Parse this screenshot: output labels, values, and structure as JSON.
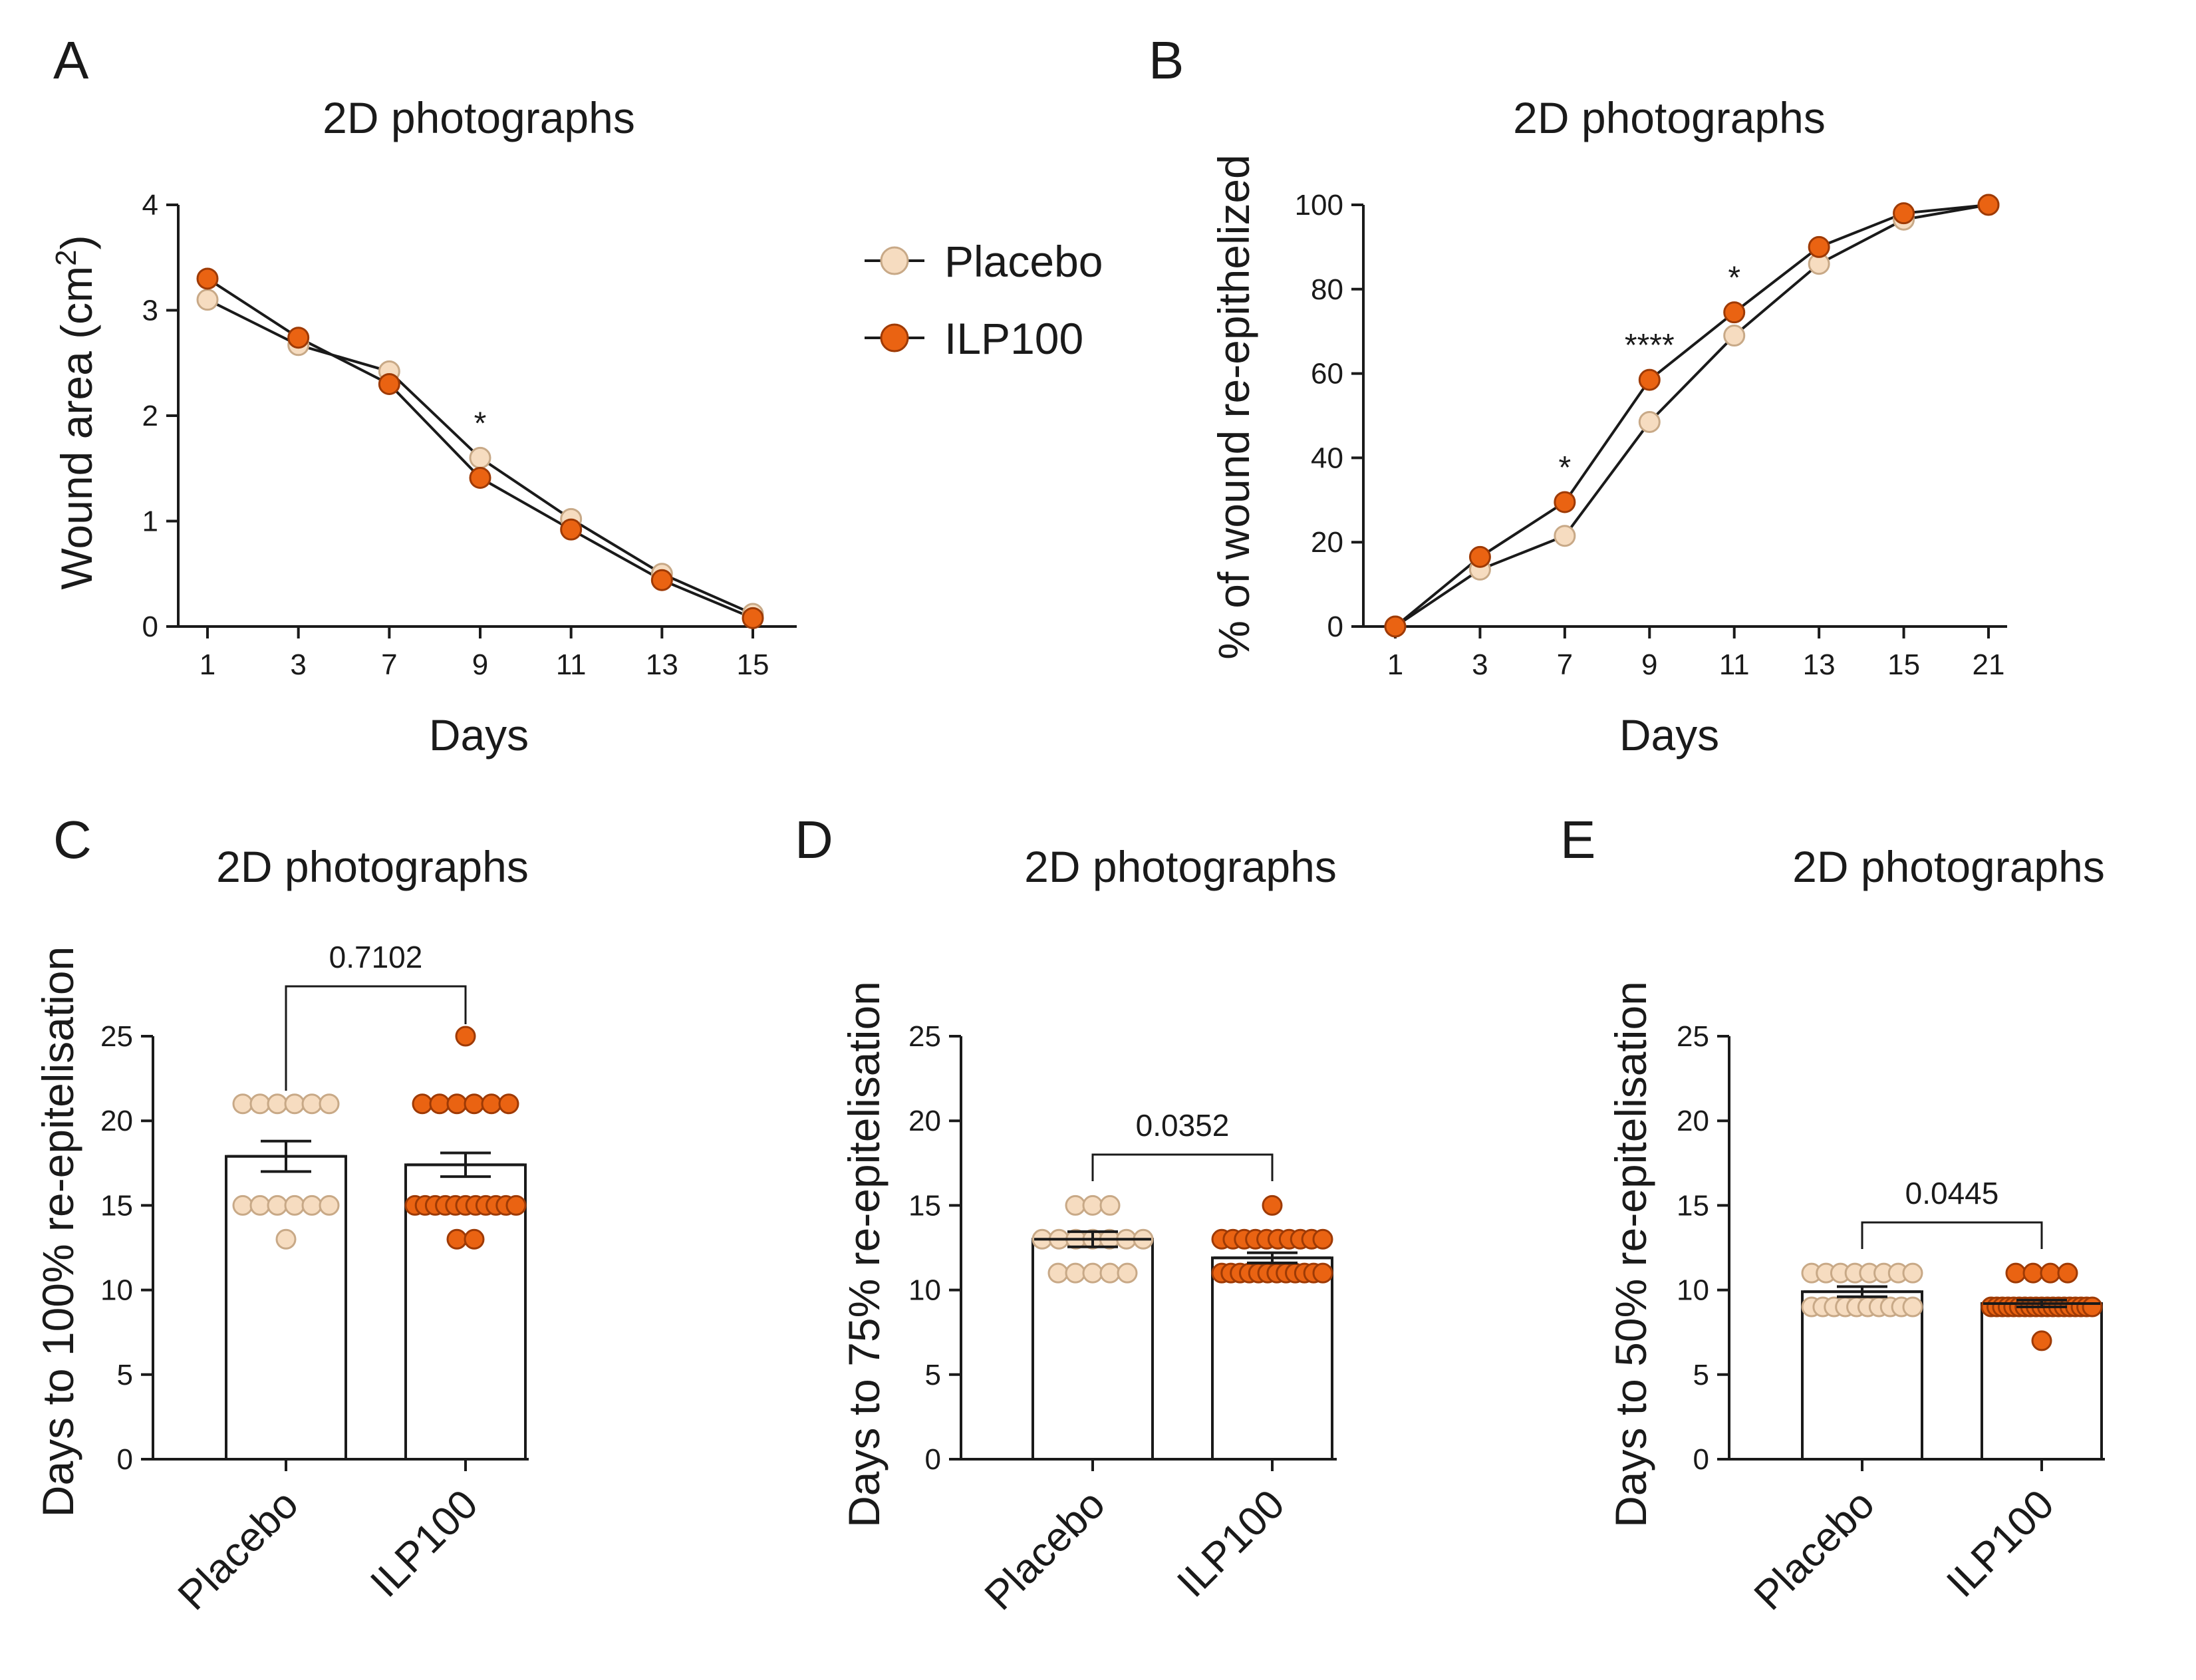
{
  "colors": {
    "placebo_fill": "#F6DCC0",
    "placebo_stroke": "#C8A987",
    "ilp_fill": "#EA6312",
    "ilp_stroke": "#9E3A05",
    "axis": "#1a1a1a"
  },
  "legend": {
    "series": [
      {
        "name": "Placebo",
        "color": "#F6DCC0"
      },
      {
        "name": "ILP100",
        "color": "#EA6312"
      }
    ]
  },
  "chart_data": [
    {
      "panel": "A",
      "type": "line",
      "title": "2D photographs",
      "xlabel": "Days",
      "ylabel": "Wound area (cm²)",
      "ylabel_main": "Wound area (cm",
      "ylabel_sup": "2",
      "ylabel_end": ")",
      "ylim": [
        0,
        4
      ],
      "yticks": [
        "0",
        "1",
        "2",
        "3",
        "4"
      ],
      "categories": [
        "1",
        "3",
        "7",
        "9",
        "11",
        "13",
        "15"
      ],
      "series": [
        {
          "name": "Placebo",
          "values": [
            3.1,
            2.67,
            2.42,
            1.6,
            1.02,
            0.5,
            0.12
          ]
        },
        {
          "name": "ILP100",
          "values": [
            3.3,
            2.74,
            2.3,
            1.41,
            0.92,
            0.44,
            0.08
          ]
        }
      ],
      "annotations": [
        {
          "category": "9",
          "text": "*"
        }
      ]
    },
    {
      "panel": "B",
      "type": "line",
      "title": "2D photographs",
      "xlabel": "Days",
      "ylabel": "% of wound re-epithelized",
      "ylim": [
        0,
        100
      ],
      "yticks": [
        "0",
        "20",
        "40",
        "60",
        "80",
        "100"
      ],
      "categories": [
        "1",
        "3",
        "7",
        "9",
        "11",
        "13",
        "15",
        "21"
      ],
      "series": [
        {
          "name": "Placebo",
          "values": [
            0,
            13.5,
            21.5,
            48.5,
            69,
            86,
            96.5,
            100
          ]
        },
        {
          "name": "ILP100",
          "values": [
            0,
            16.5,
            29.5,
            58.5,
            74.5,
            90,
            98,
            100
          ]
        }
      ],
      "annotations": [
        {
          "category": "7",
          "text": "*"
        },
        {
          "category": "9",
          "text": "****"
        },
        {
          "category": "11",
          "text": "*"
        }
      ]
    },
    {
      "panel": "C",
      "type": "bar",
      "title": "2D photographs",
      "ylabel": "Days to 100% re-epitelisation",
      "ylim": [
        0,
        25
      ],
      "yticks": [
        "0",
        "5",
        "10",
        "15",
        "20",
        "25"
      ],
      "categories": [
        "Placebo",
        "ILP100"
      ],
      "values": [
        17.9,
        17.4
      ],
      "sem": [
        0.9,
        0.7
      ],
      "points": [
        [
          21,
          21,
          21,
          21,
          21,
          21,
          15,
          15,
          15,
          15,
          15,
          15,
          13
        ],
        [
          25,
          21,
          21,
          21,
          21,
          21,
          21,
          15,
          15,
          15,
          15,
          15,
          15,
          15,
          15,
          15,
          15,
          15,
          13,
          13
        ]
      ],
      "comparison": "0.7102"
    },
    {
      "panel": "D",
      "type": "bar",
      "title": "2D photographs",
      "ylabel": "Days to 75% re-epitelisation",
      "ylim": [
        0,
        25
      ],
      "yticks": [
        "0",
        "5",
        "10",
        "15",
        "20",
        "25"
      ],
      "categories": [
        "Placebo",
        "ILP100"
      ],
      "values": [
        13.0,
        11.9
      ],
      "sem": [
        0.45,
        0.3
      ],
      "points": [
        [
          15,
          15,
          15,
          13,
          13,
          13,
          13,
          13,
          13,
          13,
          11,
          11,
          11,
          11,
          11
        ],
        [
          15,
          13,
          13,
          13,
          13,
          13,
          13,
          13,
          13,
          13,
          13,
          11,
          11,
          11,
          11,
          11,
          11,
          11,
          11,
          11,
          11,
          11,
          11
        ]
      ],
      "comparison": "0.0352"
    },
    {
      "panel": "E",
      "type": "bar",
      "title": "2D photographs",
      "ylabel": "Days to 50% re-epitelisation",
      "ylim": [
        0,
        25
      ],
      "yticks": [
        "0",
        "5",
        "10",
        "15",
        "20",
        "25"
      ],
      "categories": [
        "Placebo",
        "ILP100"
      ],
      "values": [
        9.9,
        9.2
      ],
      "sem": [
        0.3,
        0.2
      ],
      "points": [
        [
          11,
          11,
          11,
          11,
          11,
          11,
          11,
          11,
          9,
          9,
          9,
          9,
          9,
          9,
          9,
          9,
          9,
          9
        ],
        [
          11,
          11,
          11,
          11,
          9,
          9,
          9,
          9,
          9,
          9,
          9,
          9,
          9,
          9,
          9,
          9,
          9,
          9,
          9,
          9,
          9,
          9,
          9,
          7
        ]
      ],
      "comparison": "0.0445"
    }
  ]
}
